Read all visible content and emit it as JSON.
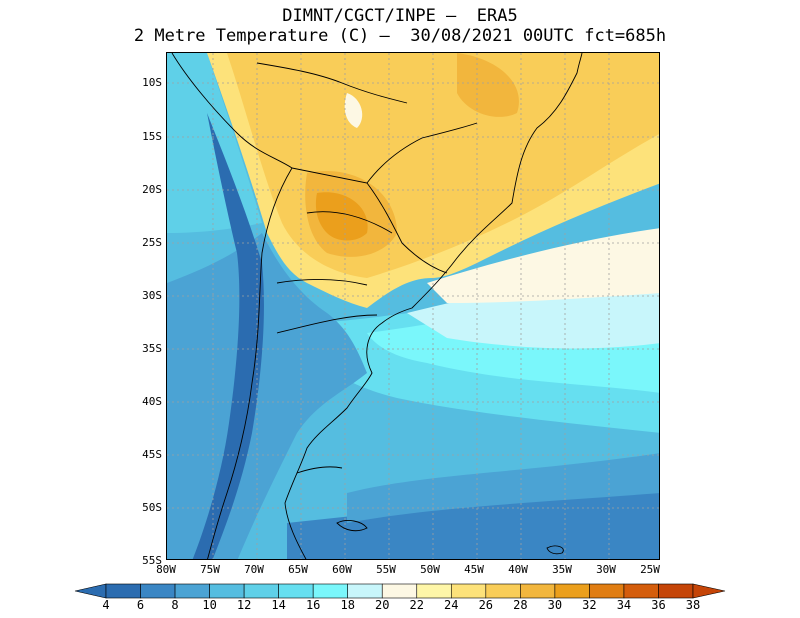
{
  "title": {
    "line1": "DIMNT/CGCT/INPE –  ERA5",
    "line2": "2 Metre Temperature (C) –  30/08/2021 00UTC fct=685h"
  },
  "lat_labels": [
    "10S",
    "15S",
    "20S",
    "25S",
    "30S",
    "35S",
    "40S",
    "45S",
    "50S",
    "55S"
  ],
  "lon_labels": [
    "80W",
    "75W",
    "70W",
    "65W",
    "60W",
    "55W",
    "50W",
    "45W",
    "40W",
    "35W",
    "30W",
    "25W"
  ],
  "colorbar": {
    "labels": [
      "4",
      "6",
      "8",
      "10",
      "12",
      "14",
      "16",
      "18",
      "20",
      "22",
      "24",
      "26",
      "28",
      "30",
      "32",
      "34",
      "36",
      "38"
    ],
    "colors": [
      "#2b6cb0",
      "#3a86c4",
      "#4ba3d4",
      "#55bde0",
      "#5fd0e8",
      "#66dff0",
      "#7af7fb",
      "#c8f6fb",
      "#fdf8e4",
      "#fef6a8",
      "#fde27a",
      "#f9cd58",
      "#f2b63d",
      "#eb9f1c",
      "#e07d12",
      "#d45d0c",
      "#c54508"
    ]
  }
}
